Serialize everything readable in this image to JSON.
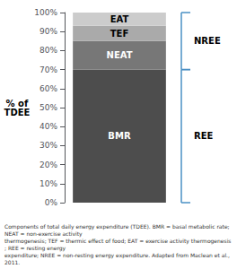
{
  "chart_data": {
    "type": "bar",
    "stacked": true,
    "categories": [
      null
    ],
    "series": [
      {
        "name": "BMR",
        "color": "#4d4d4d",
        "values": [
          70
        ]
      },
      {
        "name": "NEAT",
        "color": "#777777",
        "values": [
          15
        ]
      },
      {
        "name": "TEF",
        "color": "#aaaaaa",
        "values": [
          8
        ]
      },
      {
        "name": "EAT",
        "color": "#cccccc",
        "values": [
          7
        ]
      }
    ],
    "ylabel": "% of\nTDEE",
    "ylim": [
      0,
      100
    ],
    "yticks": [
      {
        "value": 0,
        "label": "0%"
      },
      {
        "value": 10,
        "label": "10%"
      },
      {
        "value": 20,
        "label": "20%"
      },
      {
        "value": 30,
        "label": "30%"
      },
      {
        "value": 40,
        "label": "40%"
      },
      {
        "value": 50,
        "label": "50%"
      },
      {
        "value": 60,
        "label": "60%"
      },
      {
        "value": 70,
        "label": "70%"
      },
      {
        "value": 80,
        "label": "80%"
      },
      {
        "value": 90,
        "label": "90%"
      },
      {
        "value": 100,
        "label": "100%"
      }
    ],
    "grid": false,
    "tick_labels": "y",
    "annotations": [
      {
        "text": "NREE",
        "y_range": [
          70,
          100
        ],
        "color": "#4a90c4"
      },
      {
        "text": "REE",
        "y_range": [
          0,
          70
        ],
        "color": "#4a90c4"
      }
    ],
    "caption": "Components of total daily energy expenditure (TDEE). BMR = basal metabolic rate; NEAT = non-exercise activity\nthermogenesis; TEF = thermic effect of food; EAT = exercise activity thermogenesis; REE = resting energy\nexpenditure; NREE = non-resting energy expenditure. Adapted from Maclean et al., 2011."
  }
}
